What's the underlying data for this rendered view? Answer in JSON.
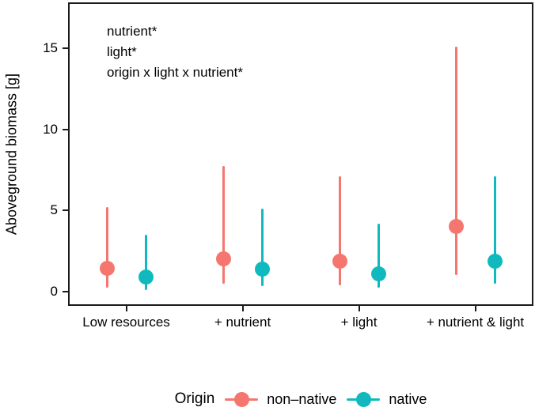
{
  "chart_data": {
    "type": "pointrange",
    "title": "",
    "xlabel": "",
    "ylabel": "Aboveground biomass [g]",
    "ylim": [
      -0.9,
      17.85
    ],
    "yticks": [
      0,
      5,
      10,
      15
    ],
    "grid": "off",
    "panel_border": true,
    "categories": [
      "Low resources",
      "+ nutrient",
      "+ light",
      "+ nutrient & light"
    ],
    "annotations": [
      "nutrient*",
      "light*",
      "origin x light x nutrient*"
    ],
    "legend": {
      "title": "Origin",
      "position": "bottom"
    },
    "series": [
      {
        "name": "non–native",
        "color": "#F4766E",
        "points": [
          {
            "category": "Low resources",
            "y": 1.4,
            "ymin": 0.2,
            "ymax": 5.2
          },
          {
            "category": "+ nutrient",
            "y": 2.0,
            "ymin": 0.45,
            "ymax": 7.75
          },
          {
            "category": "+ light",
            "y": 1.85,
            "ymin": 0.35,
            "ymax": 7.1
          },
          {
            "category": "+ nutrient & light",
            "y": 4.0,
            "ymin": 1.0,
            "ymax": 15.1
          }
        ]
      },
      {
        "name": "native",
        "color": "#0FB9BE",
        "points": [
          {
            "category": "Low resources",
            "y": 0.9,
            "ymin": 0.1,
            "ymax": 3.5
          },
          {
            "category": "+ nutrient",
            "y": 1.35,
            "ymin": 0.3,
            "ymax": 5.1
          },
          {
            "category": "+ light",
            "y": 1.1,
            "ymin": 0.2,
            "ymax": 4.2
          },
          {
            "category": "+ nutrient & light",
            "y": 1.85,
            "ymin": 0.45,
            "ymax": 7.1
          }
        ]
      }
    ]
  }
}
